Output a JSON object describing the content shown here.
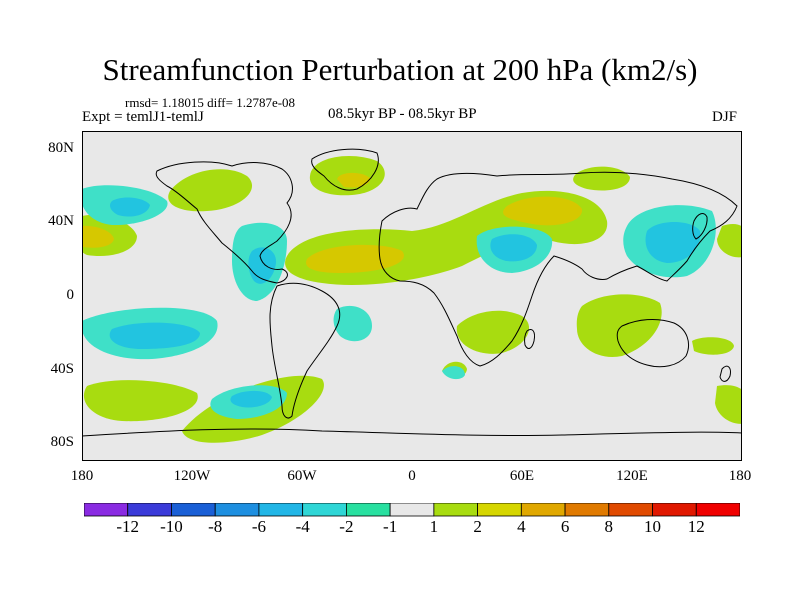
{
  "header": {
    "title": "Streamfunction Perturbation at 200 hPa (km2/s)",
    "stats": "rmsd= 1.18015 diff= 1.2787e-08",
    "experiment": "Expt = temlJ1-temlJ",
    "period": "08.5kyr BP - 08.5kyr BP",
    "season": "DJF"
  },
  "axes": {
    "lat_labels": [
      "80N",
      "40N",
      "0",
      "40S",
      "80S"
    ],
    "lon_labels": [
      "180",
      "120W",
      "60W",
      "0",
      "60E",
      "120E",
      "180"
    ]
  },
  "colorbar": {
    "labels": [
      "-12",
      "-10",
      "-8",
      "-6",
      "-4",
      "-2",
      "-1",
      "1",
      "2",
      "4",
      "6",
      "8",
      "10",
      "12"
    ],
    "colors": [
      "#8a2be2",
      "#3b3bd9",
      "#1a5fd6",
      "#1e8fe0",
      "#22b6e6",
      "#2fd6d6",
      "#28e0a0",
      "#e8e8e8",
      "#a8dc10",
      "#d6d600",
      "#e0a800",
      "#e07a00",
      "#e04a00",
      "#e01800",
      "#f00000"
    ]
  },
  "colors": {
    "background": "#e8e8e8",
    "positive_1": "#a8dc10",
    "positive_2": "#d6c800",
    "negative_1": "#3fe0c8",
    "negative_2": "#22c4e0"
  }
}
